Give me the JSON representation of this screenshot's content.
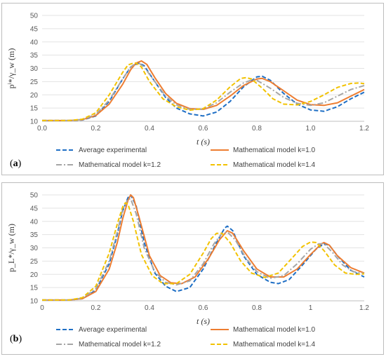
{
  "chart_data": [
    {
      "panel_label": "a",
      "type": "line",
      "ylabel": "pⁱ*/γ_w (m)",
      "xlabel": "t (s)",
      "xlim": [
        0,
        1.2
      ],
      "ylim": [
        10,
        50
      ],
      "xticks": [
        "0.0",
        "0.2",
        "0.4",
        "0.6",
        "0.8",
        "1.0",
        "1.2"
      ],
      "yticks": [
        "10",
        "15",
        "20",
        "25",
        "30",
        "35",
        "40",
        "45",
        "50"
      ],
      "grid": "horizontal",
      "legend_position": "bottom",
      "series": [
        {
          "name": "Average experimental",
          "color": "#1f6fc5",
          "dash": "dashed",
          "x": [
            0,
            0.1,
            0.15,
            0.2,
            0.25,
            0.3,
            0.33,
            0.36,
            0.38,
            0.42,
            0.46,
            0.5,
            0.55,
            0.6,
            0.65,
            0.7,
            0.75,
            0.8,
            0.82,
            0.85,
            0.9,
            0.95,
            1.0,
            1.05,
            1.1,
            1.15,
            1.2
          ],
          "y": [
            10.3,
            10.3,
            10.5,
            12.0,
            17.5,
            26.0,
            30.5,
            32.0,
            31.0,
            25.0,
            19.0,
            15.0,
            12.8,
            12.0,
            13.5,
            17.5,
            23.0,
            26.8,
            27.0,
            25.5,
            20.5,
            16.5,
            14.3,
            13.8,
            15.5,
            18.5,
            21.0
          ]
        },
        {
          "name": "Mathematical model k=1.0",
          "color": "#ed7d31",
          "dash": "solid",
          "x": [
            0,
            0.1,
            0.15,
            0.2,
            0.25,
            0.3,
            0.33,
            0.35,
            0.37,
            0.39,
            0.42,
            0.46,
            0.5,
            0.55,
            0.6,
            0.65,
            0.7,
            0.75,
            0.8,
            0.82,
            0.85,
            0.9,
            0.95,
            1.0,
            1.05,
            1.1,
            1.15,
            1.2
          ],
          "y": [
            10.3,
            10.3,
            10.6,
            12.2,
            16.5,
            24.0,
            29.5,
            32.0,
            32.8,
            31.5,
            26.5,
            20.5,
            16.8,
            14.8,
            14.5,
            16.0,
            19.5,
            23.5,
            26.0,
            26.2,
            25.0,
            21.5,
            18.0,
            16.3,
            16.0,
            17.0,
            19.5,
            22.0
          ]
        },
        {
          "name": "Mathematical model k=1.2",
          "color": "#a6a6a6",
          "dash": "dashdot",
          "x": [
            0,
            0.1,
            0.15,
            0.2,
            0.25,
            0.3,
            0.33,
            0.35,
            0.36,
            0.38,
            0.42,
            0.46,
            0.5,
            0.55,
            0.6,
            0.65,
            0.7,
            0.75,
            0.78,
            0.8,
            0.85,
            0.9,
            0.95,
            1.0,
            1.05,
            1.1,
            1.15,
            1.2
          ],
          "y": [
            10.3,
            10.3,
            10.7,
            12.6,
            18.0,
            26.0,
            30.5,
            32.0,
            32.0,
            30.5,
            25.0,
            19.5,
            16.2,
            14.5,
            14.6,
            17.0,
            21.0,
            24.5,
            25.6,
            25.5,
            22.5,
            19.0,
            16.8,
            16.0,
            17.0,
            19.5,
            22.0,
            23.5
          ]
        },
        {
          "name": "Mathematical model k=1.4",
          "color": "#f2c200",
          "dash": "dashed",
          "x": [
            0,
            0.1,
            0.15,
            0.2,
            0.25,
            0.3,
            0.32,
            0.34,
            0.35,
            0.37,
            0.4,
            0.45,
            0.5,
            0.55,
            0.6,
            0.65,
            0.7,
            0.74,
            0.76,
            0.78,
            0.82,
            0.86,
            0.9,
            0.95,
            1.0,
            1.05,
            1.1,
            1.15,
            1.18,
            1.2
          ],
          "y": [
            10.3,
            10.3,
            10.8,
            13.2,
            20.0,
            28.5,
            31.3,
            32.0,
            32.0,
            30.5,
            25.0,
            18.5,
            15.5,
            14.2,
            14.8,
            18.0,
            23.0,
            26.2,
            26.5,
            26.0,
            22.5,
            18.5,
            16.5,
            16.2,
            17.5,
            20.0,
            22.8,
            24.3,
            24.5,
            24.2
          ]
        }
      ]
    },
    {
      "panel_label": "b",
      "type": "line",
      "ylabel": "p_L*/γ_w (m)",
      "xlabel": "t (s)",
      "xlim": [
        0,
        1.2
      ],
      "ylim": [
        10,
        50
      ],
      "xticks": [
        "0",
        "0.2",
        "0.4",
        "0.6",
        "0.8",
        "1",
        "1.2"
      ],
      "yticks": [
        "10",
        "15",
        "20",
        "25",
        "30",
        "35",
        "40",
        "45",
        "50"
      ],
      "grid": "horizontal",
      "legend_position": "bottom",
      "series": [
        {
          "name": "Average experimental",
          "color": "#1f6fc5",
          "dash": "dashed",
          "x": [
            0,
            0.1,
            0.15,
            0.2,
            0.25,
            0.28,
            0.3,
            0.32,
            0.33,
            0.35,
            0.38,
            0.42,
            0.46,
            0.5,
            0.55,
            0.6,
            0.65,
            0.68,
            0.69,
            0.71,
            0.75,
            0.8,
            0.85,
            0.88,
            0.92,
            0.97,
            1.02,
            1.05,
            1.07,
            1.1,
            1.15,
            1.2
          ],
          "y": [
            10.3,
            10.3,
            10.8,
            14.0,
            24.0,
            35.0,
            44.0,
            49.0,
            50.0,
            46.0,
            32.0,
            20.5,
            15.5,
            13.5,
            15.0,
            22.0,
            32.0,
            37.5,
            38.2,
            36.5,
            27.0,
            20.0,
            17.0,
            16.5,
            18.0,
            23.5,
            29.5,
            31.5,
            31.0,
            27.0,
            21.5,
            19.0
          ]
        },
        {
          "name": "Mathematical model k=1.0",
          "color": "#ed7d31",
          "dash": "solid",
          "x": [
            0,
            0.1,
            0.15,
            0.2,
            0.25,
            0.28,
            0.3,
            0.32,
            0.33,
            0.34,
            0.36,
            0.4,
            0.44,
            0.48,
            0.52,
            0.57,
            0.62,
            0.66,
            0.69,
            0.71,
            0.75,
            0.8,
            0.85,
            0.9,
            0.95,
            1.0,
            1.04,
            1.05,
            1.07,
            1.1,
            1.15,
            1.2
          ],
          "y": [
            10.3,
            10.3,
            10.8,
            13.5,
            22.0,
            32.0,
            41.0,
            48.0,
            50.0,
            49.0,
            42.0,
            27.0,
            19.5,
            16.8,
            16.5,
            19.0,
            26.0,
            33.0,
            36.5,
            35.5,
            29.0,
            22.0,
            19.0,
            19.0,
            22.0,
            27.5,
            31.5,
            32.0,
            31.0,
            27.0,
            22.5,
            20.5
          ]
        },
        {
          "name": "Mathematical model k=1.2",
          "color": "#a6a6a6",
          "dash": "dashdot",
          "x": [
            0,
            0.1,
            0.15,
            0.2,
            0.25,
            0.28,
            0.3,
            0.32,
            0.33,
            0.35,
            0.38,
            0.42,
            0.46,
            0.5,
            0.55,
            0.6,
            0.64,
            0.67,
            0.69,
            0.72,
            0.76,
            0.8,
            0.85,
            0.9,
            0.95,
            1.0,
            1.03,
            1.05,
            1.08,
            1.12,
            1.16,
            1.2
          ],
          "y": [
            10.3,
            10.3,
            11.0,
            14.5,
            25.0,
            36.0,
            44.5,
            48.5,
            48.5,
            43.0,
            30.0,
            21.0,
            17.0,
            16.0,
            17.5,
            24.0,
            31.5,
            35.5,
            36.0,
            33.0,
            26.0,
            21.0,
            18.5,
            19.5,
            24.0,
            29.5,
            31.5,
            31.5,
            28.5,
            23.5,
            21.0,
            20.3
          ]
        },
        {
          "name": "Mathematical model k=1.4",
          "color": "#f2c200",
          "dash": "dashed",
          "x": [
            0,
            0.1,
            0.15,
            0.2,
            0.25,
            0.28,
            0.3,
            0.31,
            0.32,
            0.34,
            0.37,
            0.41,
            0.45,
            0.5,
            0.55,
            0.6,
            0.63,
            0.65,
            0.67,
            0.7,
            0.74,
            0.78,
            0.83,
            0.88,
            0.93,
            0.97,
            1.0,
            1.02,
            1.05,
            1.09,
            1.13,
            1.17,
            1.2
          ],
          "y": [
            10.3,
            10.3,
            11.2,
            15.5,
            28.0,
            39.0,
            45.5,
            47.0,
            46.5,
            40.0,
            27.5,
            19.5,
            16.5,
            16.5,
            20.0,
            28.0,
            33.5,
            35.5,
            35.5,
            32.0,
            25.0,
            20.5,
            18.8,
            20.5,
            26.0,
            30.5,
            32.2,
            32.0,
            29.0,
            23.5,
            20.5,
            20.0,
            20.2
          ]
        }
      ]
    }
  ]
}
